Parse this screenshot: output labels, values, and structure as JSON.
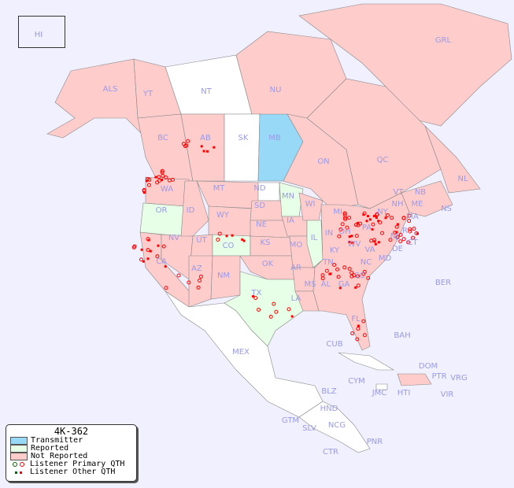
{
  "legend": {
    "title": "4K-362",
    "items": [
      {
        "label": "Transmitter",
        "color": "#99d9f8"
      },
      {
        "label": "Reported",
        "color": "#e6ffe6"
      },
      {
        "label": "Not Reported",
        "color": "#ffcccc"
      },
      {
        "label": "Listener Primary QTH",
        "marker": "circle",
        "colors": [
          "#006600",
          "#ff0000"
        ]
      },
      {
        "label": "Listener Other QTH",
        "marker": "square",
        "colors": [
          "#006600",
          "#ff0000"
        ]
      }
    ]
  },
  "regions": {
    "transmitter": [
      "MB"
    ],
    "reported": [
      "OR",
      "CO",
      "MN",
      "IL",
      "TX"
    ],
    "not_reported_note": "all other shaded regions",
    "unshaded": [
      "NT",
      "SK",
      "ND",
      "MEX"
    ]
  },
  "labels": [
    "HI",
    "ALS",
    "YT",
    "NT",
    "NU",
    "GRL",
    "BC",
    "AB",
    "SK",
    "MB",
    "ON",
    "QC",
    "NL",
    "NB",
    "NS",
    "WA",
    "OR",
    "ID",
    "MT",
    "WY",
    "ND",
    "SD",
    "NE",
    "MN",
    "WI",
    "IA",
    "MI",
    "NV",
    "UT",
    "CO",
    "KS",
    "MO",
    "IL",
    "IN",
    "OH",
    "PA",
    "NY",
    "VT",
    "NH",
    "ME",
    "MA",
    "CT",
    "RI",
    "NJ",
    "DE",
    "MD",
    "WV",
    "VA",
    "KY",
    "CA",
    "AZ",
    "NM",
    "OK",
    "AR",
    "TN",
    "NC",
    "SC",
    "MS",
    "AL",
    "GA",
    "TX",
    "LA",
    "FL",
    "BER",
    "BAH",
    "CUB",
    "MEX",
    "CYM",
    "JMC",
    "HTI",
    "DOM",
    "PTR",
    "VRG",
    "VIR",
    "BLZ",
    "HND",
    "GTM",
    "SLV",
    "NCG",
    "CTR",
    "PNR"
  ]
}
